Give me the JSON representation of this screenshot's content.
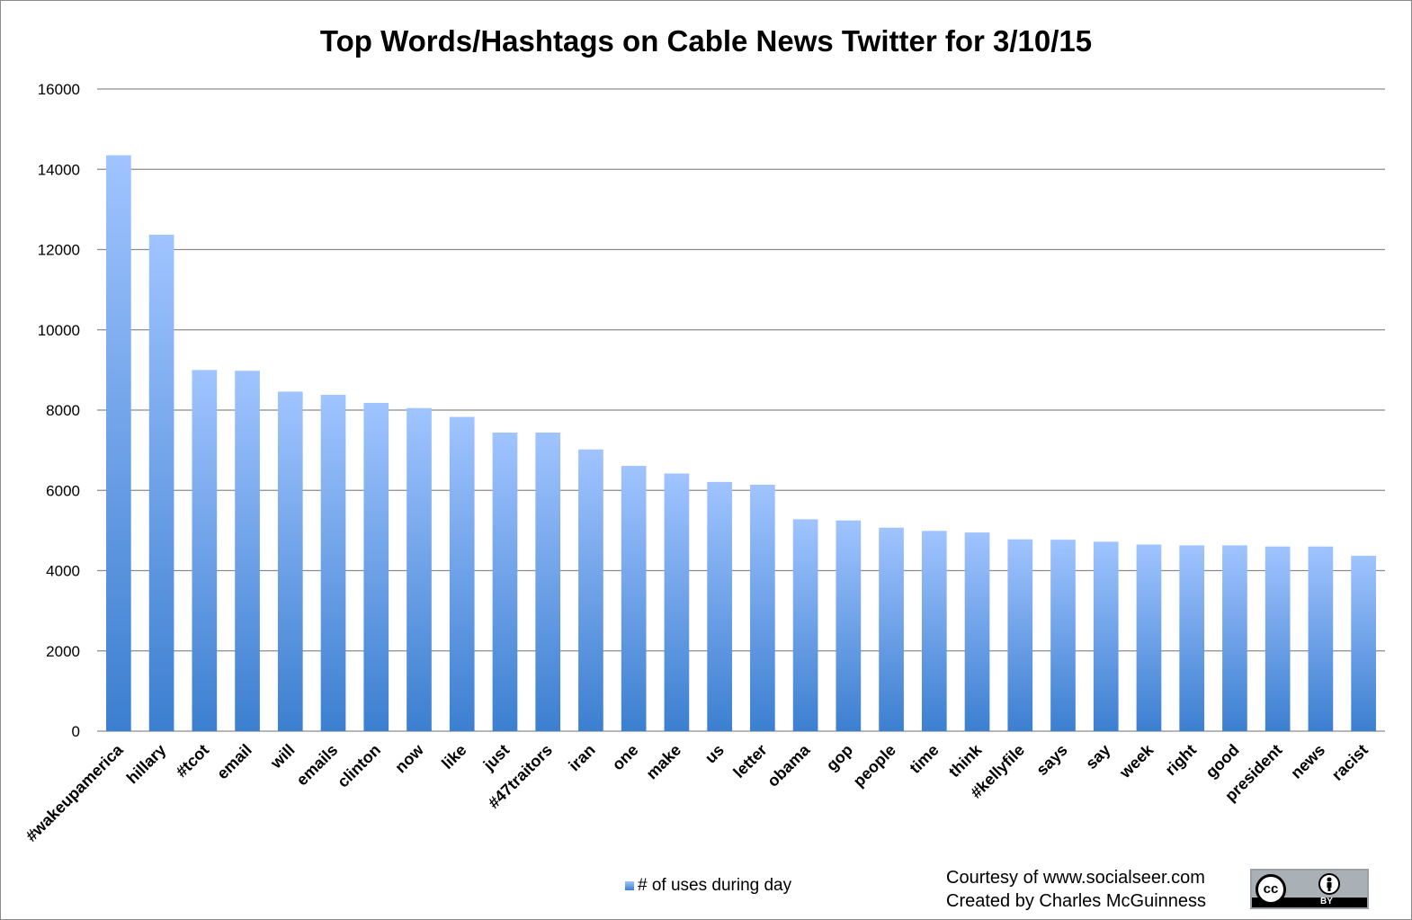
{
  "chart_data": {
    "type": "bar",
    "title": "Top Words/Hashtags on Cable News Twitter for 3/10/15",
    "xlabel": "",
    "ylabel": "",
    "ylim": [
      0,
      16000
    ],
    "yticks": [
      0,
      2000,
      4000,
      6000,
      8000,
      10000,
      12000,
      14000,
      16000
    ],
    "grid": true,
    "legend_position": "bottom",
    "categories": [
      "#wakeupamerica",
      "hillary",
      "#tcot",
      "email",
      "will",
      "emails",
      "clinton",
      "now",
      "like",
      "just",
      "#47traitors",
      "iran",
      "one",
      "make",
      "us",
      "letter",
      "obama",
      "gop",
      "people",
      "time",
      "think",
      "#kellyfile",
      "says",
      "say",
      "week",
      "right",
      "good",
      "president",
      "news",
      "racist"
    ],
    "series": [
      {
        "name": "# of uses during day",
        "values": [
          14350,
          12370,
          9000,
          8980,
          8460,
          8380,
          8180,
          8050,
          7830,
          7440,
          7440,
          7020,
          6610,
          6420,
          6210,
          6140,
          5280,
          5250,
          5070,
          4990,
          4950,
          4780,
          4770,
          4720,
          4650,
          4630,
          4630,
          4600,
          4600,
          4370
        ]
      }
    ],
    "colors": {
      "bar_top": "#a0c4ff",
      "bar_bottom": "#3c7fd0",
      "grid": "#8c8c8c"
    }
  },
  "credits": {
    "line1": "Courtesy of www.socialseer.com",
    "line2": "Created by Charles McGuinness"
  },
  "license_badge": {
    "icon": "creative-commons-by-icon",
    "cc_text": "cc",
    "by_text": "BY"
  }
}
